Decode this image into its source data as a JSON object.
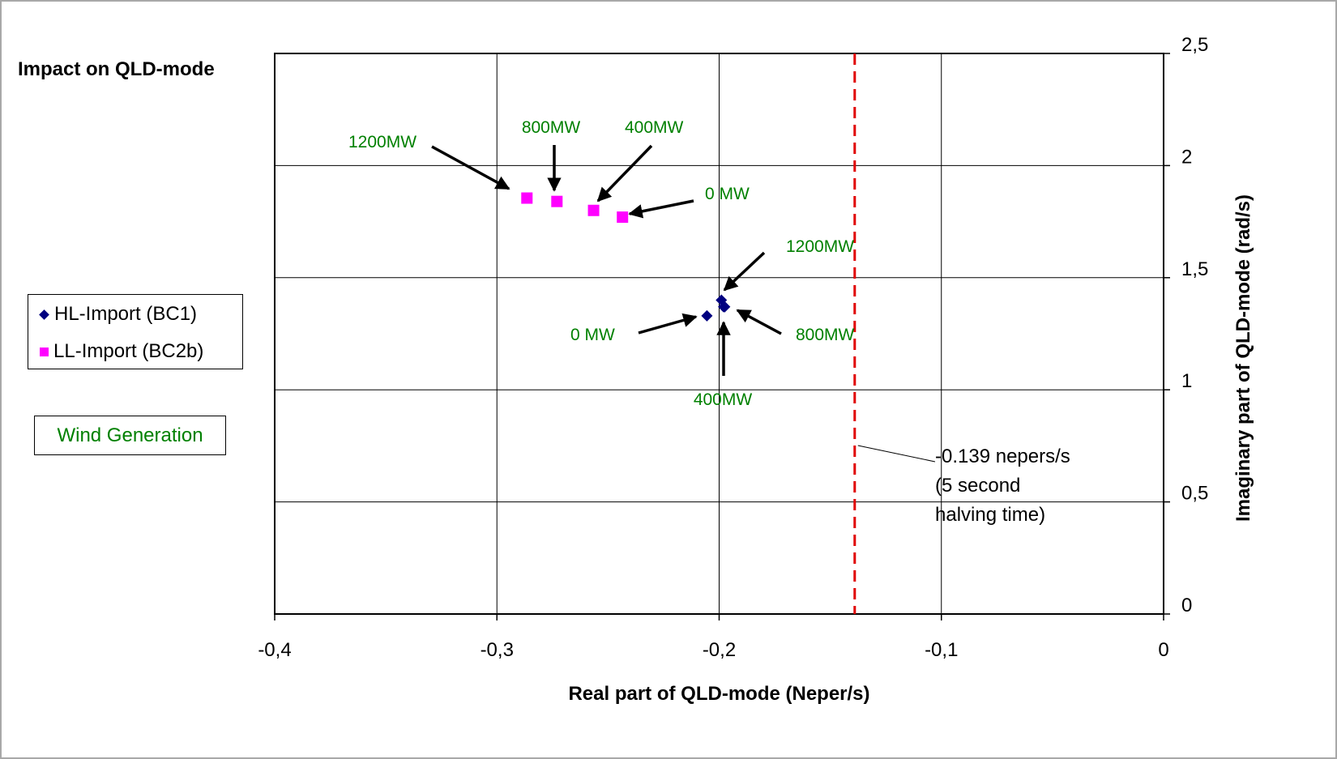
{
  "chart_data": {
    "type": "scatter",
    "title": "Impact on QLD-mode",
    "xlabel": "Real part of QLD-mode (Neper/s)",
    "ylabel": "Imaginary part of QLD-mode (rad/s)",
    "xlim": [
      -0.4,
      0
    ],
    "ylim": [
      0,
      2.5
    ],
    "x_ticks": [
      "-0,4",
      "-0,3",
      "-0,2",
      "-0,1",
      "0"
    ],
    "y_ticks": [
      "0",
      "0,5",
      "1",
      "1,5",
      "2",
      "2,5"
    ],
    "y_axis_position": "right",
    "grid": true,
    "legend_placement": "left",
    "series": [
      {
        "name": "HL-Import (BC1)",
        "marker": "diamond",
        "color": "#000080",
        "points": [
          {
            "x": -0.2055,
            "y": 1.33
          },
          {
            "x": -0.198,
            "y": 1.37
          },
          {
            "x": -0.1975,
            "y": 1.37
          },
          {
            "x": -0.199,
            "y": 1.4
          }
        ]
      },
      {
        "name": "LL-Import (BC2b)",
        "marker": "square",
        "color": "#ff00ff",
        "points": [
          {
            "x": -0.2435,
            "y": 1.77
          },
          {
            "x": -0.2565,
            "y": 1.8
          },
          {
            "x": -0.273,
            "y": 1.84
          },
          {
            "x": -0.2865,
            "y": 1.855
          }
        ]
      }
    ],
    "threshold_line": {
      "x": -0.139,
      "color": "#e00000",
      "style": "dashed"
    },
    "annotations": {
      "point_labels_color": "#008000",
      "ll": [
        "1200MW",
        "800MW",
        "400MW",
        "0 MW"
      ],
      "hl": [
        "1200MW",
        "0 MW",
        "800MW",
        "400MW"
      ],
      "threshold_note": [
        "-0.139 nepers/s",
        "(5 second",
        "halving time)"
      ],
      "wind_box": "Wind Generation"
    }
  }
}
